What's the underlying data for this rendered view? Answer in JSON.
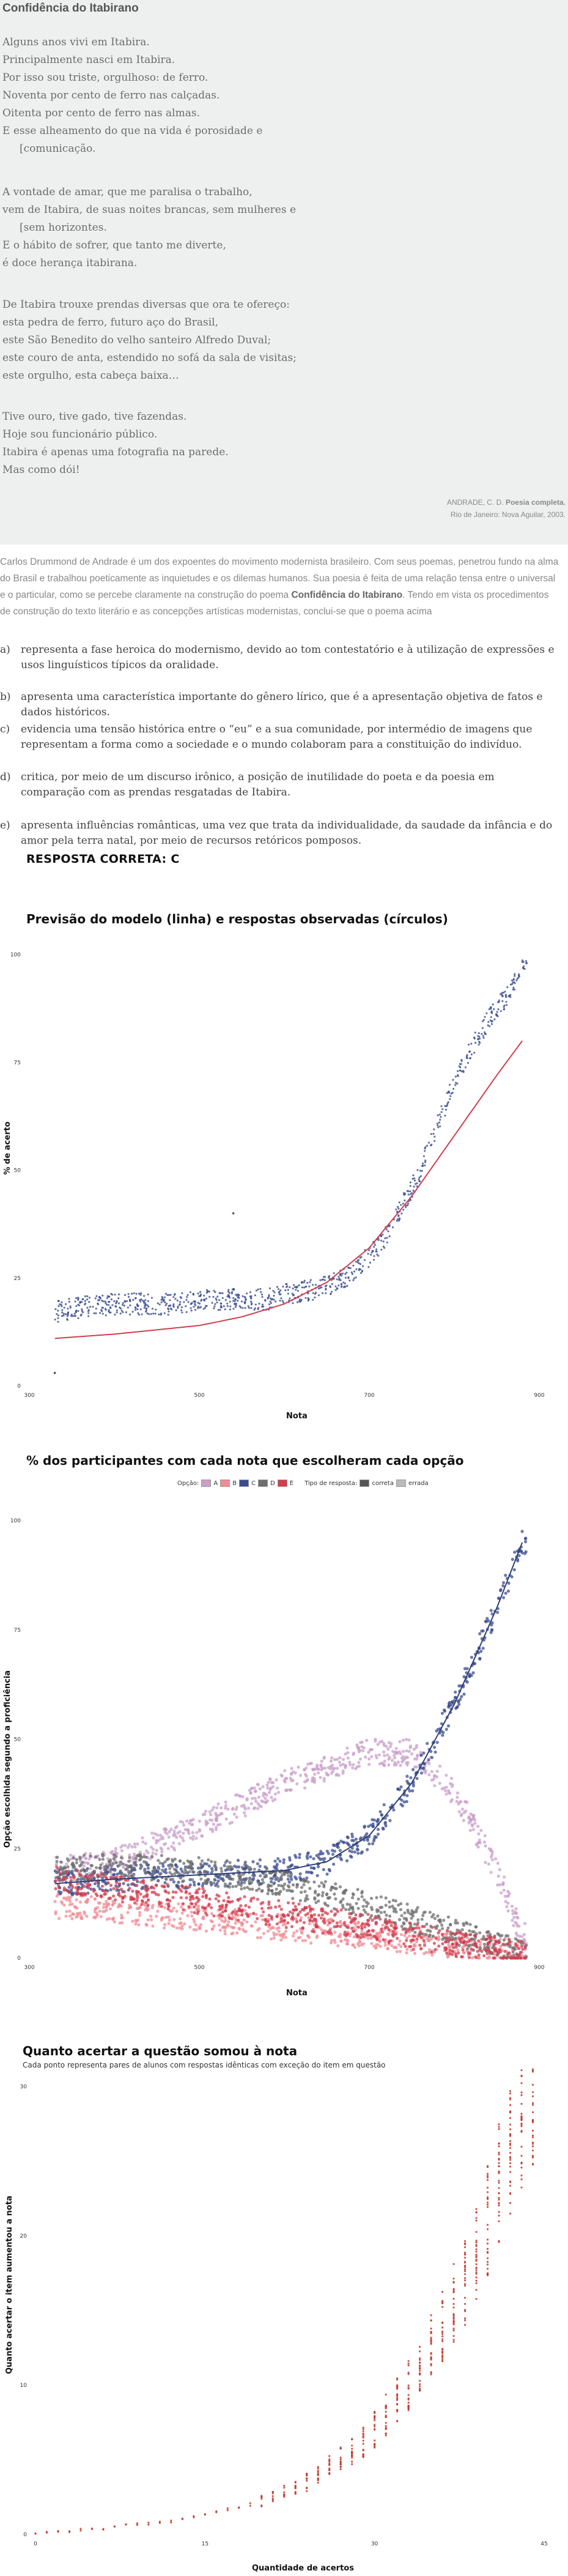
{
  "poem": {
    "title": "Confidência do Itabirano",
    "stanzas": [
      [
        "Alguns anos vivi em Itabira.",
        "Principalmente nasci em Itabira.",
        "Por isso sou triste, orgulhoso: de ferro.",
        "Noventa por cento de ferro nas calçadas.",
        "Oitenta por cento de ferro nas almas.",
        "E esse alheamento do que na vida é porosidade e",
        "[comunicação."
      ],
      [
        "A vontade de amar, que me paralisa o trabalho,",
        "vem de Itabira, de suas noites brancas, sem mulheres e",
        "[sem horizontes.",
        "E o hábito de sofrer, que tanto me diverte,",
        "é doce herança itabirana."
      ],
      [
        "De Itabira trouxe prendas diversas que ora te ofereço:",
        "esta pedra de ferro, futuro aço do Brasil,",
        "este São Benedito do velho santeiro Alfredo Duval;",
        "este couro de anta, estendido no sofá da sala de visitas;",
        "este orgulho, esta cabeça baixa…"
      ],
      [
        "Tive ouro, tive gado, tive fazendas.",
        "Hoje sou funcionário público.",
        "Itabira é apenas uma fotografia na parede.",
        "Mas como dói!"
      ]
    ],
    "credit_author": "ANDRADE, C. D. ",
    "credit_book": "Poesia completa.",
    "credit_pub": "Rio de Janeiro: Nova Aguilar, 2003."
  },
  "intro": {
    "before": "Carlos Drummond de Andrade é um dos expoentes do movimento modernista brasileiro. Com seus poemas, penetrou fundo na alma do Brasil e trabalhou poeticamente as inquietudes e os dilemas humanos. Sua poesia é feita de uma relação tensa entre o universal e o particular, como se percebe claramente na construção do poema ",
    "bold": "Confidência do Itabirano",
    "after": ". Tendo em vista os procedimentos de construção do texto literário e as concepções artísticas modernistas, conclui-se que o poema acima"
  },
  "options": [
    {
      "letter": "a)",
      "text": "representa a fase heroica do modernismo, devido ao tom contestatório e à utilização de expressões e usos linguísticos típicos da oralidade."
    },
    {
      "letter": "b)",
      "text": "apresenta uma característica importante do gênero lírico, que é a apresentação objetiva de fatos e dados históricos."
    },
    {
      "letter": "c)",
      "text": "evidencia uma tensão histórica entre o “eu” e a sua comunidade, por intermédio de imagens que representam a forma como a sociedade e o mundo colaboram para a constituição do indivíduo."
    },
    {
      "letter": "d)",
      "text": "critica, por meio de um discurso irônico, a posição de inutilidade do poeta e da poesia em comparação com as prendas resgatadas de Itabira."
    },
    {
      "letter": "e)",
      "text": "apresenta influências românticas, uma vez que trata da individualidade, da saudade da infância e do amor pela terra natal, por meio de recursos retóricos pomposos."
    }
  ],
  "answer_label": "RESPOSTA CORRETA: C",
  "chart_data": [
    {
      "type": "scatter",
      "title": "Previsão do modelo (linha) e respostas observadas (círculos)",
      "xlabel": "Nota",
      "ylabel": "% de acerto",
      "x_ticks": [
        "300",
        "500",
        "700",
        "900"
      ],
      "y_ticks": [
        "0",
        "25",
        "50",
        "75",
        "100"
      ],
      "xlim": [
        300,
        900
      ],
      "ylim": [
        0,
        100
      ],
      "series": [
        {
          "name": "",
          "kind": "points",
          "color": "#3b4d8f",
          "note": "observed",
          "x": [
            330,
            350,
            400,
            450,
            480,
            500,
            520,
            550,
            580,
            600,
            620,
            650,
            670,
            690,
            700,
            720,
            740,
            760,
            780,
            800,
            820,
            840,
            860,
            870,
            880
          ],
          "y": [
            17,
            18,
            19,
            19,
            19,
            20,
            20,
            20,
            20,
            21,
            22,
            23,
            25,
            28,
            30,
            35,
            42,
            50,
            60,
            70,
            78,
            85,
            90,
            94,
            98
          ]
        },
        {
          "name": "",
          "kind": "line",
          "color": "#d23c4e",
          "note": "model",
          "x": [
            330,
            400,
            450,
            500,
            550,
            600,
            650,
            700,
            750,
            800,
            850,
            880
          ],
          "y": [
            11,
            12,
            13,
            14,
            16,
            19,
            24,
            32,
            44,
            58,
            72,
            80
          ]
        }
      ]
    },
    {
      "type": "scatter",
      "title": "% dos participantes com cada nota que escolheram cada opção",
      "xlabel": "Nota",
      "ylabel": "Opção escolhida segundo a proficiência",
      "legend_option_title": "Opção:",
      "legend_type_title": "Tipo de resposta:",
      "legend_placement": "top",
      "x_ticks": [
        "300",
        "500",
        "700",
        "900"
      ],
      "y_ticks": [
        "0",
        "25",
        "50",
        "75",
        "100"
      ],
      "xlim": [
        300,
        900
      ],
      "ylim": [
        0,
        100
      ],
      "series": [
        {
          "name": "A",
          "color": "#c9a0c9",
          "x": [
            330,
            400,
            500,
            600,
            700,
            750,
            800,
            850,
            880
          ],
          "y": [
            20,
            22,
            30,
            40,
            47,
            47,
            38,
            20,
            5
          ]
        },
        {
          "name": "B",
          "color": "#f08c96",
          "x": [
            330,
            400,
            500,
            600,
            700,
            750,
            800,
            850,
            880
          ],
          "y": [
            12,
            11,
            9,
            7,
            5,
            4,
            3,
            2,
            1
          ]
        },
        {
          "name": "C",
          "color": "#3b4d8f",
          "x": [
            330,
            400,
            500,
            600,
            650,
            700,
            750,
            800,
            850,
            880
          ],
          "y": [
            17,
            18,
            19,
            20,
            22,
            28,
            40,
            58,
            80,
            95
          ]
        },
        {
          "name": "D",
          "color": "#6e6e6e",
          "x": [
            330,
            400,
            500,
            600,
            700,
            750,
            800,
            850,
            880
          ],
          "y": [
            20,
            21,
            20,
            17,
            12,
            9,
            6,
            3,
            1
          ]
        },
        {
          "name": "E",
          "color": "#d23c4e",
          "x": [
            330,
            400,
            500,
            600,
            700,
            750,
            800,
            850,
            880
          ],
          "y": [
            18,
            16,
            13,
            10,
            7,
            5,
            3,
            2,
            1
          ]
        }
      ],
      "legend_options": [
        "A",
        "B",
        "C",
        "D",
        "E"
      ],
      "legend_types": [
        "correta",
        "errada"
      ]
    },
    {
      "type": "scatter",
      "title": "Quanto acertar a questão somou à nota",
      "subtitle": "Cada ponto representa pares de alunos com respostas idênticas com exceção do item em questão",
      "xlabel": "Quantidade de acertos",
      "ylabel": "Quanto acertar o item aumentou a nota",
      "x_ticks": [
        "0",
        "15",
        "30",
        "45"
      ],
      "y_ticks": [
        "0",
        "10",
        "20",
        "30"
      ],
      "xlim": [
        0,
        45
      ],
      "ylim": [
        0,
        30
      ],
      "series": [
        {
          "name": "",
          "color": "#c0392b",
          "x": [
            0,
            2,
            4,
            6,
            8,
            10,
            12,
            14,
            16,
            18,
            20,
            22,
            24,
            26,
            28,
            30,
            32,
            34,
            36,
            38,
            40,
            42,
            43,
            44
          ],
          "y": [
            0.1,
            0.2,
            0.3,
            0.4,
            0.6,
            0.7,
            0.9,
            1.2,
            1.5,
            1.8,
            2.2,
            2.8,
            3.5,
            4.5,
            5.5,
            7,
            9,
            11,
            14,
            17,
            21,
            26,
            28,
            29
          ]
        }
      ]
    }
  ]
}
